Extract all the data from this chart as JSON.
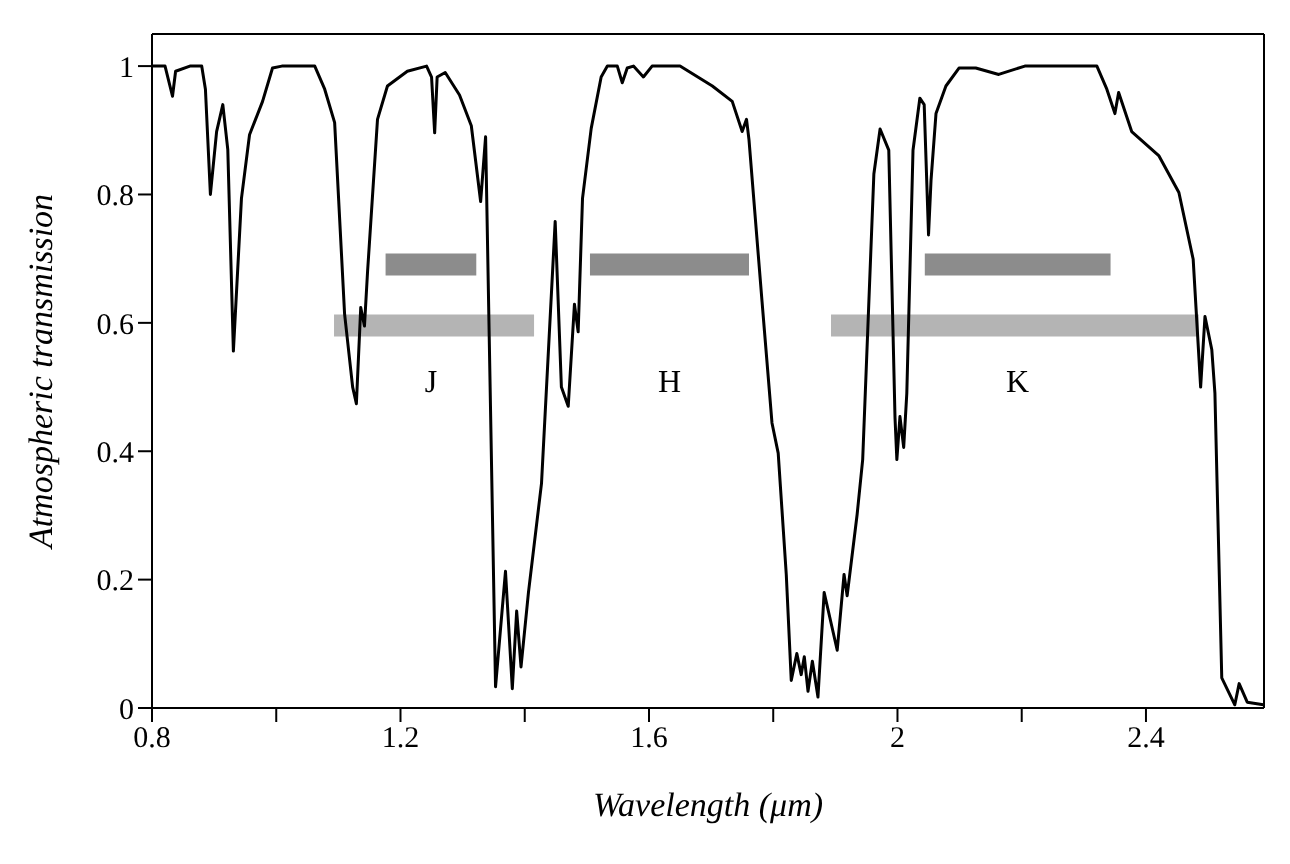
{
  "chart_data": {
    "type": "line",
    "xlabel": "Wavelength (μm)",
    "ylabel": "Atmospheric transmission",
    "xlim": [
      0.8,
      2.59
    ],
    "ylim": [
      0,
      1.05
    ],
    "xticks": [
      0.8,
      {
        "value": 1.0,
        "label": null
      },
      1.2,
      {
        "value": 1.4,
        "label": null
      },
      1.6,
      {
        "value": 1.8,
        "label": null
      },
      2,
      {
        "value": 2.2,
        "label": null
      },
      2.4
    ],
    "yticks": [
      0,
      0.2,
      0.4,
      0.6,
      0.8,
      1
    ],
    "legend": false,
    "marker": "none",
    "line_style": "solid",
    "series": [
      {
        "color": "#000000",
        "x": [
          0.8,
          0.821,
          0.833,
          0.838,
          0.861,
          0.88,
          0.886,
          0.894,
          0.904,
          0.914,
          0.922,
          0.931,
          0.944,
          0.957,
          0.978,
          0.994,
          1.009,
          1.062,
          1.078,
          1.094,
          1.11,
          1.123,
          1.129,
          1.136,
          1.142,
          1.147,
          1.163,
          1.179,
          1.211,
          1.242,
          1.25,
          1.255,
          1.259,
          1.272,
          1.295,
          1.314,
          1.329,
          1.337,
          1.353,
          1.369,
          1.38,
          1.387,
          1.394,
          1.406,
          1.427,
          1.449,
          1.459,
          1.47,
          1.48,
          1.486,
          1.493,
          1.507,
          1.523,
          1.533,
          1.549,
          1.557,
          1.565,
          1.575,
          1.591,
          1.605,
          1.65,
          1.702,
          1.734,
          1.75,
          1.757,
          1.761,
          1.782,
          1.798,
          1.808,
          1.821,
          1.829,
          1.838,
          1.845,
          1.85,
          1.856,
          1.863,
          1.872,
          1.882,
          1.903,
          1.914,
          1.919,
          1.935,
          1.944,
          1.962,
          1.972,
          1.986,
          1.996,
          1.999,
          2.004,
          2.01,
          2.015,
          2.025,
          2.036,
          2.043,
          2.05,
          2.054,
          2.062,
          2.078,
          2.099,
          2.126,
          2.163,
          2.205,
          2.284,
          2.321,
          2.337,
          2.35,
          2.356,
          2.377,
          2.421,
          2.453,
          2.476,
          2.488,
          2.495,
          2.506,
          2.511,
          2.522,
          2.543,
          2.55,
          2.563,
          2.589
        ],
        "values": [
          1.0,
          1.0,
          0.953,
          0.992,
          1.0,
          1.0,
          0.964,
          0.8,
          0.898,
          0.94,
          0.87,
          0.556,
          0.794,
          0.893,
          0.945,
          0.997,
          1.0,
          1.0,
          0.964,
          0.912,
          0.614,
          0.5,
          0.474,
          0.624,
          0.595,
          0.68,
          0.917,
          0.969,
          0.992,
          1.0,
          0.983,
          0.896,
          0.983,
          0.99,
          0.955,
          0.907,
          0.789,
          0.89,
          0.033,
          0.213,
          0.03,
          0.151,
          0.064,
          0.18,
          0.35,
          0.758,
          0.5,
          0.47,
          0.629,
          0.586,
          0.794,
          0.903,
          0.983,
          1.0,
          1.0,
          0.974,
          0.997,
          1.0,
          0.983,
          1.0,
          1.0,
          0.969,
          0.945,
          0.898,
          0.917,
          0.885,
          0.633,
          0.444,
          0.397,
          0.208,
          0.043,
          0.085,
          0.052,
          0.08,
          0.026,
          0.073,
          0.017,
          0.18,
          0.09,
          0.208,
          0.175,
          0.301,
          0.387,
          0.832,
          0.902,
          0.869,
          0.453,
          0.387,
          0.454,
          0.406,
          0.49,
          0.869,
          0.95,
          0.94,
          0.737,
          0.822,
          0.926,
          0.969,
          0.997,
          0.997,
          0.987,
          1.0,
          1.0,
          1.0,
          0.964,
          0.926,
          0.959,
          0.898,
          0.86,
          0.803,
          0.699,
          0.5,
          0.61,
          0.558,
          0.49,
          0.047,
          0.005,
          0.038,
          0.009,
          0.005
        ]
      },
      {
        "color": "#8c8c8c",
        "x": [
          1.176,
          1.322
        ],
        "values": [
          0.691,
          0.691
        ]
      },
      {
        "color": "#8c8c8c",
        "x": [
          1.505,
          1.761
        ],
        "values": [
          0.691,
          0.691
        ]
      },
      {
        "color": "#8c8c8c",
        "x": [
          2.044,
          2.343
        ],
        "values": [
          0.691,
          0.691
        ]
      },
      {
        "color": "#b4b4b4",
        "x": [
          1.093,
          1.415
        ],
        "values": [
          0.596,
          0.596
        ]
      },
      {
        "color": "#b4b4b4",
        "x": [
          1.893,
          2.485
        ],
        "values": [
          0.596,
          0.596
        ]
      }
    ],
    "annotations": [
      "J",
      "H",
      "K"
    ]
  }
}
